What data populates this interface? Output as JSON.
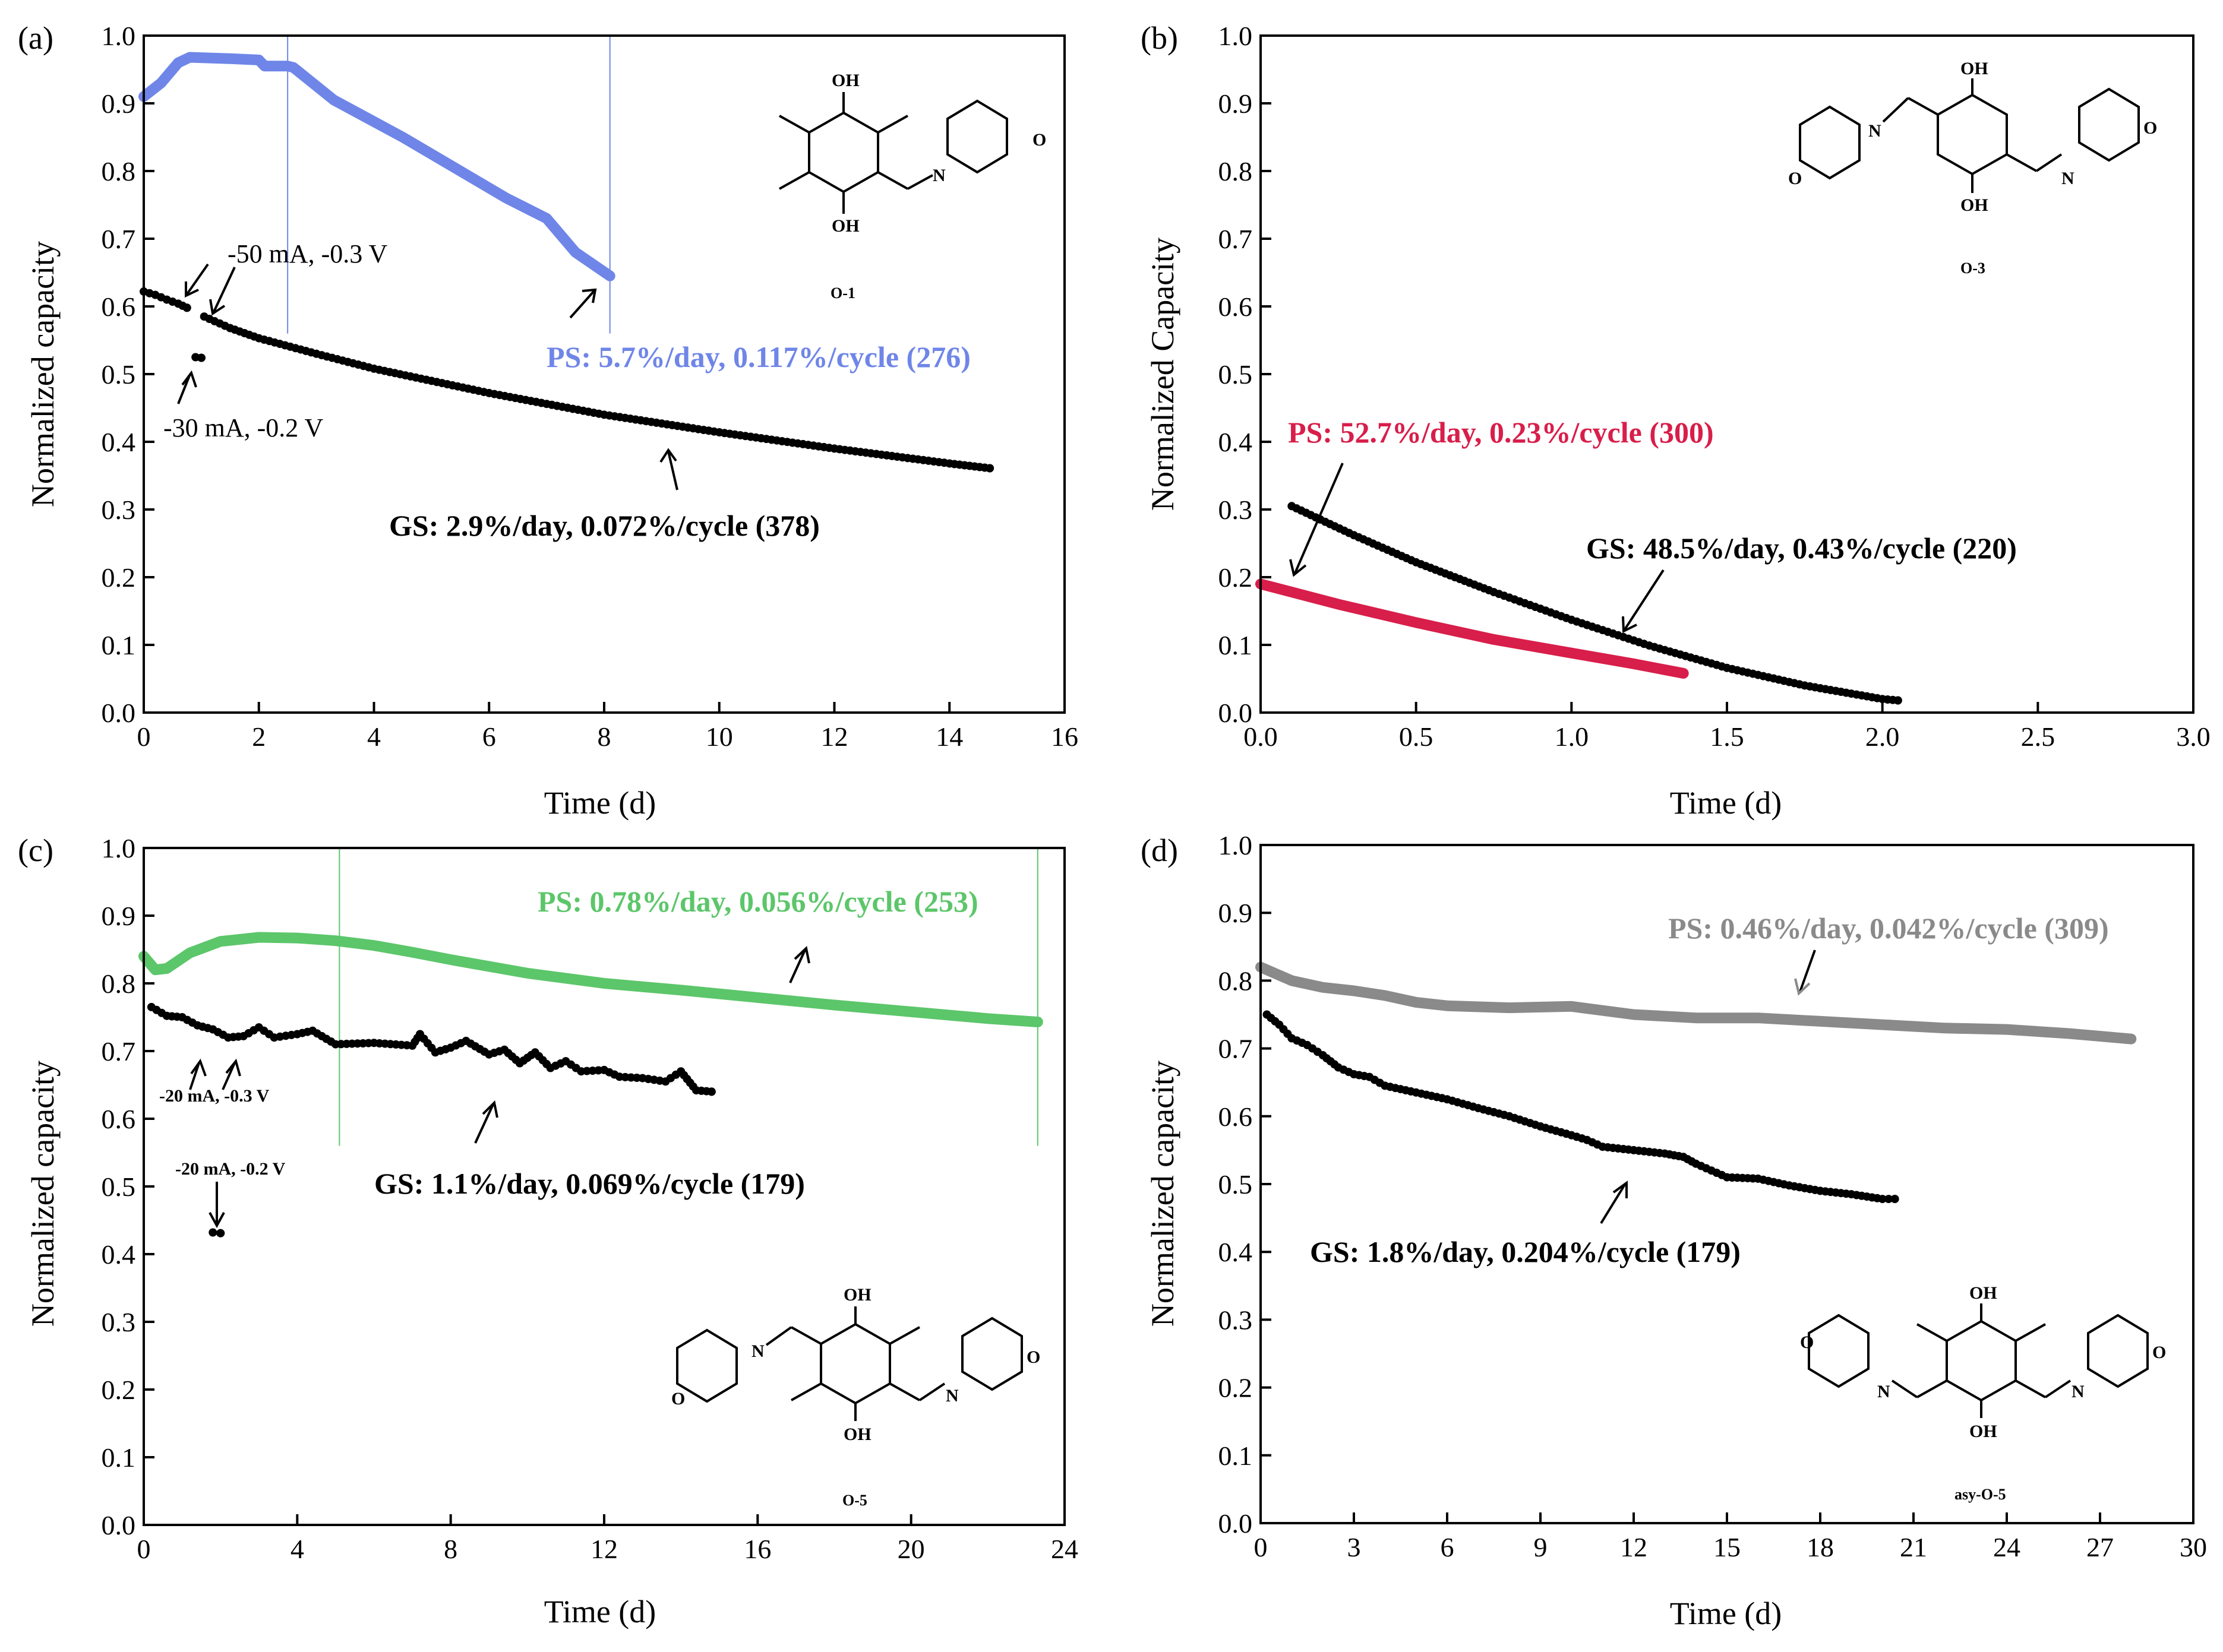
{
  "chart_data": [
    {
      "id": "a",
      "type": "scatter",
      "panel_label": "(a)",
      "xlabel": "Time (d)",
      "ylabel": "Normalized capacity",
      "xlim": [
        0,
        16
      ],
      "ylim": [
        0,
        1.0
      ],
      "xticks": [
        "0",
        "2",
        "4",
        "6",
        "8",
        "10",
        "12",
        "14",
        "16"
      ],
      "yticks": [
        "0.0",
        "0.1",
        "0.2",
        "0.3",
        "0.4",
        "0.5",
        "0.6",
        "0.7",
        "0.8",
        "0.9",
        "1.0"
      ],
      "vlines": [
        2.5,
        8.1
      ],
      "series": [
        {
          "name": "PS",
          "color": "#6f86e8",
          "marker": "line",
          "points": [
            [
              0,
              0.91
            ],
            [
              0.3,
              0.93
            ],
            [
              0.6,
              0.96
            ],
            [
              0.8,
              0.968
            ],
            [
              1.5,
              0.966
            ],
            [
              2.0,
              0.964
            ],
            [
              2.1,
              0.955
            ],
            [
              2.5,
              0.955
            ],
            [
              2.6,
              0.953
            ],
            [
              3.3,
              0.905
            ],
            [
              4.5,
              0.85
            ],
            [
              5.5,
              0.8
            ],
            [
              6.3,
              0.76
            ],
            [
              7.0,
              0.73
            ],
            [
              7.5,
              0.68
            ],
            [
              8.1,
              0.645
            ]
          ]
        },
        {
          "name": "GS segment 1",
          "color": "#000000",
          "marker": "dot",
          "points": [
            [
              0,
              0.622
            ],
            [
              0.2,
              0.617
            ],
            [
              0.4,
              0.61
            ],
            [
              0.6,
              0.604
            ],
            [
              0.75,
              0.598
            ]
          ]
        },
        {
          "name": "GS segment 2",
          "color": "#000000",
          "marker": "dot",
          "points": [
            [
              0.9,
              0.525
            ],
            [
              1.0,
              0.524
            ]
          ]
        },
        {
          "name": "GS",
          "color": "#000000",
          "marker": "dot",
          "points": [
            [
              1.05,
              0.585
            ],
            [
              1.5,
              0.568
            ],
            [
              2,
              0.553
            ],
            [
              3,
              0.53
            ],
            [
              4,
              0.508
            ],
            [
              5,
              0.49
            ],
            [
              6,
              0.472
            ],
            [
              7,
              0.456
            ],
            [
              8,
              0.44
            ],
            [
              9,
              0.427
            ],
            [
              10,
              0.414
            ],
            [
              11,
              0.402
            ],
            [
              12,
              0.39
            ],
            [
              13,
              0.379
            ],
            [
              14,
              0.368
            ],
            [
              14.7,
              0.361
            ]
          ]
        }
      ],
      "annotations": {
        "ps": "PS: 5.7%/day, 0.117%/cycle (276)",
        "gs": "GS: 2.9%/day, 0.072%/cycle (378)",
        "cond1": "-50 mA, -0.3 V",
        "cond2": "-30 mA, -0.2 V"
      },
      "ps_color": "#6f86e8",
      "molecule": "O-1"
    },
    {
      "id": "b",
      "type": "scatter",
      "panel_label": "(b)",
      "xlabel": "Time (d)",
      "ylabel": "Normalized Capacity",
      "xlim": [
        0,
        3.0
      ],
      "ylim": [
        0,
        1.0
      ],
      "xticks": [
        "0.0",
        "0.5",
        "1.0",
        "1.5",
        "2.0",
        "2.5",
        "3.0"
      ],
      "yticks": [
        "0.0",
        "0.1",
        "0.2",
        "0.3",
        "0.4",
        "0.5",
        "0.6",
        "0.7",
        "0.8",
        "0.9",
        "1.0"
      ],
      "series": [
        {
          "name": "PS",
          "color": "#d81e4a",
          "marker": "line",
          "points": [
            [
              0,
              0.19
            ],
            [
              0.25,
              0.16
            ],
            [
              0.5,
              0.133
            ],
            [
              0.75,
              0.108
            ],
            [
              1.0,
              0.088
            ],
            [
              1.2,
              0.072
            ],
            [
              1.36,
              0.058
            ]
          ]
        },
        {
          "name": "GS",
          "color": "#000000",
          "marker": "dot",
          "points": [
            [
              0.1,
              0.305
            ],
            [
              0.3,
              0.262
            ],
            [
              0.5,
              0.222
            ],
            [
              0.75,
              0.178
            ],
            [
              1.0,
              0.137
            ],
            [
              1.25,
              0.099
            ],
            [
              1.5,
              0.066
            ],
            [
              1.75,
              0.04
            ],
            [
              2.0,
              0.02
            ],
            [
              2.05,
              0.018
            ]
          ]
        }
      ],
      "annotations": {
        "ps": "PS: 52.7%/day, 0.23%/cycle (300)",
        "gs": "GS: 48.5%/day, 0.43%/cycle (220)"
      },
      "ps_color": "#d81e4a",
      "molecule": "O-3"
    },
    {
      "id": "c",
      "type": "scatter",
      "panel_label": "(c)",
      "xlabel": "Time (d)",
      "ylabel": "Normalized capacity",
      "xlim": [
        0,
        24
      ],
      "ylim": [
        0,
        1.0
      ],
      "xticks": [
        "0",
        "4",
        "8",
        "12",
        "16",
        "20",
        "24"
      ],
      "yticks": [
        "0.0",
        "0.1",
        "0.2",
        "0.3",
        "0.4",
        "0.5",
        "0.6",
        "0.7",
        "0.8",
        "0.9",
        "1.0"
      ],
      "vlines": [
        5.1,
        23.3
      ],
      "series": [
        {
          "name": "PS",
          "color": "#5cc66a",
          "marker": "line",
          "points": [
            [
              0,
              0.84
            ],
            [
              0.3,
              0.82
            ],
            [
              0.6,
              0.822
            ],
            [
              1.2,
              0.845
            ],
            [
              2,
              0.862
            ],
            [
              3,
              0.868
            ],
            [
              4,
              0.867
            ],
            [
              5,
              0.863
            ],
            [
              6,
              0.856
            ],
            [
              7,
              0.846
            ],
            [
              8,
              0.835
            ],
            [
              10,
              0.815
            ],
            [
              12,
              0.8
            ],
            [
              14,
              0.79
            ],
            [
              16,
              0.779
            ],
            [
              18,
              0.768
            ],
            [
              20,
              0.758
            ],
            [
              22,
              0.748
            ],
            [
              23.3,
              0.743
            ]
          ]
        },
        {
          "name": "GS",
          "color": "#000000",
          "marker": "dot",
          "points": [
            [
              0.2,
              0.765
            ],
            [
              0.6,
              0.752
            ],
            [
              1,
              0.75
            ],
            [
              1.4,
              0.738
            ],
            [
              1.8,
              0.732
            ],
            [
              2.2,
              0.72
            ],
            [
              2.6,
              0.722
            ],
            [
              3,
              0.735
            ],
            [
              3.4,
              0.72
            ],
            [
              4,
              0.725
            ],
            [
              4.4,
              0.73
            ],
            [
              5,
              0.71
            ],
            [
              6,
              0.712
            ],
            [
              7,
              0.708
            ],
            [
              7.2,
              0.725
            ],
            [
              7.6,
              0.698
            ],
            [
              8,
              0.705
            ],
            [
              8.4,
              0.715
            ],
            [
              9,
              0.695
            ],
            [
              9.4,
              0.702
            ],
            [
              9.8,
              0.682
            ],
            [
              10.2,
              0.698
            ],
            [
              10.6,
              0.675
            ],
            [
              11,
              0.685
            ],
            [
              11.4,
              0.67
            ],
            [
              12,
              0.672
            ],
            [
              12.4,
              0.662
            ],
            [
              13,
              0.66
            ],
            [
              13.6,
              0.655
            ],
            [
              14,
              0.67
            ],
            [
              14.4,
              0.642
            ],
            [
              14.8,
              0.64
            ]
          ]
        },
        {
          "name": "GS drop",
          "color": "#000000",
          "marker": "dot",
          "points": [
            [
              1.8,
              0.432
            ],
            [
              2.0,
              0.431
            ]
          ]
        }
      ],
      "annotations": {
        "ps": "PS: 0.78%/day, 0.056%/cycle (253)",
        "gs": "GS: 1.1%/day, 0.069%/cycle (179)",
        "cond1": "-20 mA, -0.3 V",
        "cond2": "-20 mA, -0.2 V"
      },
      "ps_color": "#5cc66a",
      "molecule": "O-5"
    },
    {
      "id": "d",
      "type": "scatter",
      "panel_label": "(d)",
      "xlabel": "Time (d)",
      "ylabel": "Normalized capacity",
      "xlim": [
        0,
        30
      ],
      "ylim": [
        0,
        1.0
      ],
      "xticks": [
        "0",
        "3",
        "6",
        "9",
        "12",
        "15",
        "18",
        "21",
        "24",
        "27",
        "30"
      ],
      "yticks": [
        "0.0",
        "0.1",
        "0.2",
        "0.3",
        "0.4",
        "0.5",
        "0.6",
        "0.7",
        "0.8",
        "0.9",
        "1.0"
      ],
      "series": [
        {
          "name": "PS",
          "color": "#8a8a8a",
          "marker": "line",
          "points": [
            [
              0,
              0.82
            ],
            [
              1,
              0.8
            ],
            [
              2,
              0.79
            ],
            [
              3,
              0.785
            ],
            [
              4,
              0.778
            ],
            [
              5,
              0.768
            ],
            [
              6,
              0.763
            ],
            [
              8,
              0.76
            ],
            [
              10,
              0.762
            ],
            [
              12,
              0.75
            ],
            [
              14,
              0.745
            ],
            [
              16,
              0.745
            ],
            [
              18,
              0.74
            ],
            [
              20,
              0.735
            ],
            [
              22,
              0.73
            ],
            [
              24,
              0.728
            ],
            [
              26,
              0.722
            ],
            [
              28,
              0.714
            ]
          ]
        },
        {
          "name": "GS",
          "color": "#000000",
          "marker": "dot",
          "points": [
            [
              0.2,
              0.75
            ],
            [
              0.6,
              0.735
            ],
            [
              1,
              0.715
            ],
            [
              1.5,
              0.705
            ],
            [
              2,
              0.69
            ],
            [
              2.5,
              0.672
            ],
            [
              3,
              0.662
            ],
            [
              3.5,
              0.658
            ],
            [
              4,
              0.645
            ],
            [
              5,
              0.635
            ],
            [
              6,
              0.625
            ],
            [
              7,
              0.612
            ],
            [
              8,
              0.6
            ],
            [
              9,
              0.585
            ],
            [
              10,
              0.572
            ],
            [
              10.5,
              0.565
            ],
            [
              11,
              0.555
            ],
            [
              12,
              0.55
            ],
            [
              13,
              0.545
            ],
            [
              13.6,
              0.54
            ],
            [
              14,
              0.53
            ],
            [
              14.5,
              0.52
            ],
            [
              15,
              0.51
            ],
            [
              16,
              0.508
            ],
            [
              17,
              0.498
            ],
            [
              18,
              0.49
            ],
            [
              19,
              0.485
            ],
            [
              20,
              0.478
            ],
            [
              20.4,
              0.478
            ]
          ]
        }
      ],
      "annotations": {
        "ps": "PS: 0.46%/day, 0.042%/cycle (309)",
        "gs": "GS: 1.8%/day, 0.204%/cycle (179)"
      },
      "ps_color": "#8a8a8a",
      "molecule": "asy-O-5"
    }
  ],
  "molecule_atoms": {
    "oh": "OH",
    "o": "O",
    "n": "N"
  }
}
